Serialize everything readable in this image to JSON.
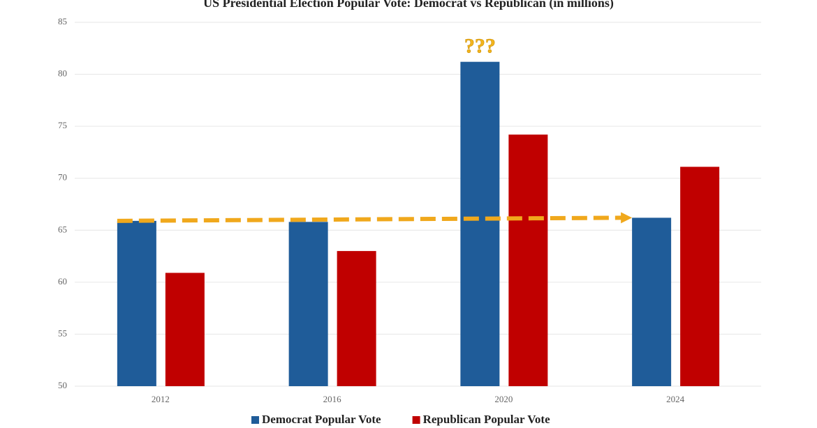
{
  "chart_data": {
    "type": "bar",
    "title": "US Presidential Election Popular Vote: Democrat vs Republican (in millions)",
    "categories": [
      "2012",
      "2016",
      "2020",
      "2024"
    ],
    "series": [
      {
        "name": "Democrat Popular Vote",
        "color": "#1f5c99",
        "values": [
          65.9,
          65.8,
          81.2,
          66.2
        ]
      },
      {
        "name": "Republican Popular Vote",
        "color": "#c00000",
        "values": [
          60.9,
          63.0,
          74.2,
          71.1
        ]
      }
    ],
    "ylim": [
      50,
      85
    ],
    "yticks": [
      50,
      55,
      60,
      65,
      70,
      75,
      80,
      85
    ],
    "grid": true,
    "legend": "bottom",
    "annotations": [
      {
        "text": "???",
        "series": 0,
        "category": 2
      }
    ]
  }
}
